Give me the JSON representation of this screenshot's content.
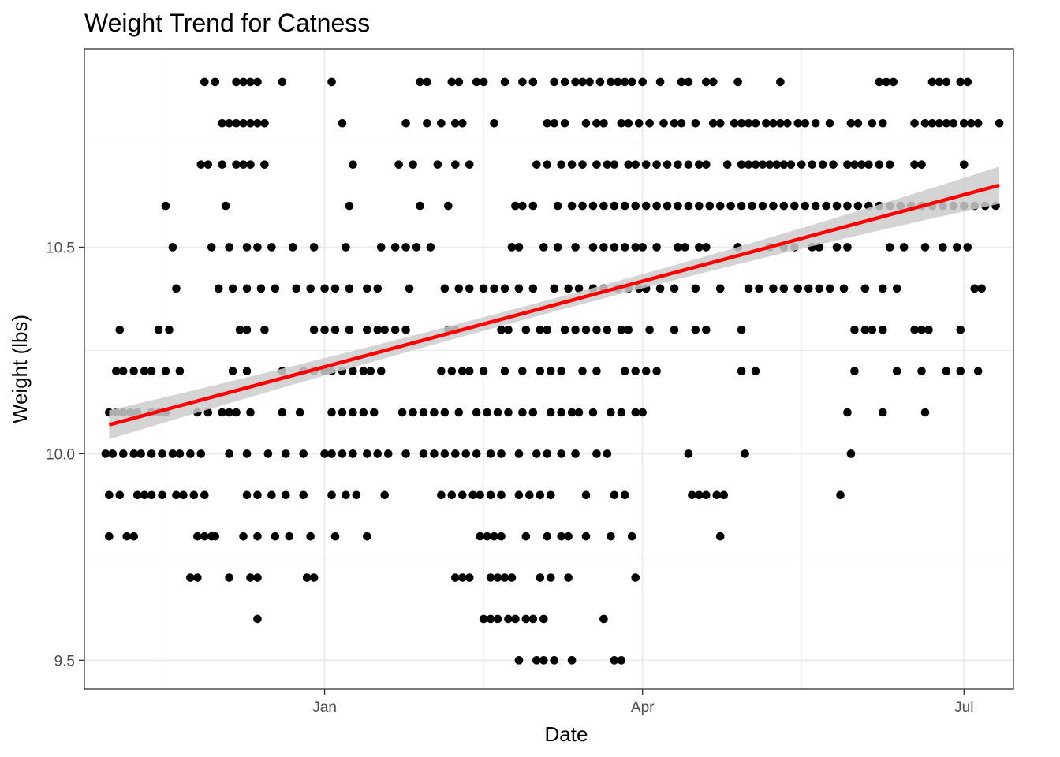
{
  "chart_data": {
    "type": "scatter",
    "title": "Weight Trend for Catness",
    "xlabel": "Date",
    "ylabel": "Weight (lbs)",
    "x_type": "date",
    "xlim": [
      "2021-10-25",
      "2022-07-15"
    ],
    "ylim": [
      9.43,
      10.98
    ],
    "x_ticks": [
      {
        "value": "2022-01-01",
        "label": "Jan"
      },
      {
        "value": "2022-04-01",
        "label": "Apr"
      },
      {
        "value": "2022-07-01",
        "label": "Jul"
      }
    ],
    "x_minor_ticks": [
      "2021-11-16",
      "2022-02-15",
      "2022-05-16"
    ],
    "y_ticks": [
      {
        "value": 9.5,
        "label": "9.5"
      },
      {
        "value": 10.0,
        "label": "10.0"
      },
      {
        "value": 10.5,
        "label": "10.5"
      }
    ],
    "y_minor_ticks": [
      9.75,
      10.25,
      10.75
    ],
    "grid": true,
    "point_color": "#000000",
    "trend": {
      "method": "linear",
      "color": "#ff0000",
      "band_color": "#cccccc",
      "x": [
        "2021-11-01",
        "2022-07-11"
      ],
      "y": [
        10.07,
        10.65
      ],
      "band_halfwidth": [
        0.035,
        0.045
      ]
    },
    "points_by_weight": [
      {
        "y": 10.9,
        "x": [
          "2021-11-28",
          "2021-12-01",
          "2021-12-07",
          "2021-12-09",
          "2021-12-11",
          "2021-12-13",
          "2021-12-20",
          "2022-01-03",
          "2022-01-28",
          "2022-01-30",
          "2022-02-06",
          "2022-02-08",
          "2022-02-13",
          "2022-02-15",
          "2022-02-21",
          "2022-02-26",
          "2022-03-01",
          "2022-03-07",
          "2022-03-10",
          "2022-03-13",
          "2022-03-15",
          "2022-03-17",
          "2022-03-20",
          "2022-03-23",
          "2022-03-25",
          "2022-03-27",
          "2022-03-29",
          "2022-04-01",
          "2022-04-06",
          "2022-04-12",
          "2022-04-14",
          "2022-04-19",
          "2022-04-21",
          "2022-04-28",
          "2022-05-10",
          "2022-06-07",
          "2022-06-09",
          "2022-06-11",
          "2022-06-22",
          "2022-06-24",
          "2022-06-26",
          "2022-06-30",
          "2022-07-02"
        ]
      },
      {
        "y": 10.8,
        "x": [
          "2021-12-03",
          "2021-12-05",
          "2021-12-07",
          "2021-12-09",
          "2021-12-11",
          "2021-12-13",
          "2021-12-15",
          "2022-01-06",
          "2022-01-24",
          "2022-01-30",
          "2022-02-03",
          "2022-02-07",
          "2022-02-09",
          "2022-02-18",
          "2022-03-05",
          "2022-03-07",
          "2022-03-10",
          "2022-03-16",
          "2022-03-19",
          "2022-03-21",
          "2022-03-26",
          "2022-03-28",
          "2022-03-31",
          "2022-04-03",
          "2022-04-07",
          "2022-04-10",
          "2022-04-12",
          "2022-04-16",
          "2022-04-21",
          "2022-04-23",
          "2022-04-27",
          "2022-04-29",
          "2022-05-01",
          "2022-05-03",
          "2022-05-06",
          "2022-05-08",
          "2022-05-10",
          "2022-05-12",
          "2022-05-15",
          "2022-05-17",
          "2022-05-20",
          "2022-05-24",
          "2022-05-30",
          "2022-06-01",
          "2022-06-05",
          "2022-06-08",
          "2022-06-17",
          "2022-06-20",
          "2022-06-22",
          "2022-06-24",
          "2022-06-26",
          "2022-06-28",
          "2022-07-01",
          "2022-07-03",
          "2022-07-05",
          "2022-07-11"
        ]
      },
      {
        "y": 10.7,
        "x": [
          "2021-11-27",
          "2021-11-29",
          "2021-12-03",
          "2021-12-07",
          "2021-12-09",
          "2021-12-11",
          "2021-12-15",
          "2022-01-09",
          "2022-01-22",
          "2022-01-26",
          "2022-02-02",
          "2022-02-07",
          "2022-02-11",
          "2022-03-02",
          "2022-03-05",
          "2022-03-09",
          "2022-03-12",
          "2022-03-15",
          "2022-03-19",
          "2022-03-22",
          "2022-03-24",
          "2022-03-28",
          "2022-03-30",
          "2022-04-02",
          "2022-04-05",
          "2022-04-08",
          "2022-04-11",
          "2022-04-14",
          "2022-04-17",
          "2022-04-19",
          "2022-04-25",
          "2022-04-29",
          "2022-05-01",
          "2022-05-03",
          "2022-05-05",
          "2022-05-07",
          "2022-05-09",
          "2022-05-11",
          "2022-05-13",
          "2022-05-16",
          "2022-05-19",
          "2022-05-22",
          "2022-05-25",
          "2022-05-29",
          "2022-05-31",
          "2022-06-02",
          "2022-06-04",
          "2022-06-07",
          "2022-06-10",
          "2022-06-17",
          "2022-06-19",
          "2022-07-01"
        ]
      },
      {
        "y": 10.6,
        "x": [
          "2021-11-17",
          "2021-12-04",
          "2022-01-08",
          "2022-01-28",
          "2022-02-05",
          "2022-02-24",
          "2022-02-26",
          "2022-03-01",
          "2022-03-08",
          "2022-03-12",
          "2022-03-15",
          "2022-03-18",
          "2022-03-21",
          "2022-03-24",
          "2022-03-27",
          "2022-03-30",
          "2022-04-02",
          "2022-04-05",
          "2022-04-08",
          "2022-04-11",
          "2022-04-14",
          "2022-04-17",
          "2022-04-20",
          "2022-04-23",
          "2022-04-26",
          "2022-04-29",
          "2022-05-02",
          "2022-05-05",
          "2022-05-08",
          "2022-05-11",
          "2022-05-14",
          "2022-05-17",
          "2022-05-20",
          "2022-05-23",
          "2022-05-26",
          "2022-05-29",
          "2022-06-01",
          "2022-06-04",
          "2022-06-07",
          "2022-06-10",
          "2022-06-13",
          "2022-06-16",
          "2022-06-19",
          "2022-06-22",
          "2022-06-25",
          "2022-06-28",
          "2022-07-01",
          "2022-07-04",
          "2022-07-07",
          "2022-07-10"
        ]
      },
      {
        "y": 10.5,
        "x": [
          "2021-11-19",
          "2021-11-30",
          "2021-12-05",
          "2021-12-10",
          "2021-12-13",
          "2021-12-17",
          "2021-12-23",
          "2021-12-29",
          "2022-01-07",
          "2022-01-17",
          "2022-01-21",
          "2022-01-24",
          "2022-01-27",
          "2022-01-31",
          "2022-02-23",
          "2022-02-25",
          "2022-03-04",
          "2022-03-08",
          "2022-03-13",
          "2022-03-18",
          "2022-03-21",
          "2022-03-24",
          "2022-03-27",
          "2022-03-30",
          "2022-04-01",
          "2022-04-05",
          "2022-04-11",
          "2022-04-13",
          "2022-04-17",
          "2022-04-19",
          "2022-04-28",
          "2022-05-07",
          "2022-05-11",
          "2022-05-14",
          "2022-05-19",
          "2022-05-21",
          "2022-05-26",
          "2022-05-29",
          "2022-06-10",
          "2022-06-14",
          "2022-06-20",
          "2022-06-25",
          "2022-06-29",
          "2022-07-02"
        ]
      },
      {
        "y": 10.4,
        "x": [
          "2021-11-20",
          "2021-12-02",
          "2021-12-06",
          "2021-12-10",
          "2021-12-14",
          "2021-12-18",
          "2021-12-24",
          "2021-12-28",
          "2022-01-01",
          "2022-01-04",
          "2022-01-08",
          "2022-01-13",
          "2022-01-16",
          "2022-01-25",
          "2022-02-04",
          "2022-02-08",
          "2022-02-11",
          "2022-02-15",
          "2022-02-18",
          "2022-02-21",
          "2022-02-25",
          "2022-03-01",
          "2022-03-07",
          "2022-03-11",
          "2022-03-14",
          "2022-03-18",
          "2022-03-21",
          "2022-03-25",
          "2022-03-28",
          "2022-03-31",
          "2022-04-02",
          "2022-04-06",
          "2022-04-10",
          "2022-04-16",
          "2022-04-23",
          "2022-05-01",
          "2022-05-04",
          "2022-05-08",
          "2022-05-11",
          "2022-05-15",
          "2022-05-18",
          "2022-05-21",
          "2022-05-24",
          "2022-05-28",
          "2022-06-03",
          "2022-06-08",
          "2022-06-12",
          "2022-07-04",
          "2022-07-06"
        ]
      },
      {
        "y": 10.3,
        "x": [
          "2021-11-04",
          "2021-11-15",
          "2021-11-18",
          "2021-12-08",
          "2021-12-10",
          "2021-12-15",
          "2021-12-29",
          "2022-01-01",
          "2022-01-04",
          "2022-01-08",
          "2022-01-13",
          "2022-01-16",
          "2022-01-18",
          "2022-01-21",
          "2022-01-24",
          "2022-02-05",
          "2022-02-07",
          "2022-02-20",
          "2022-02-22",
          "2022-02-27",
          "2022-03-03",
          "2022-03-05",
          "2022-03-10",
          "2022-03-13",
          "2022-03-16",
          "2022-03-19",
          "2022-03-22",
          "2022-03-26",
          "2022-03-28",
          "2022-04-03",
          "2022-04-10",
          "2022-04-16",
          "2022-04-19",
          "2022-04-29",
          "2022-05-31",
          "2022-06-03",
          "2022-06-05",
          "2022-06-08",
          "2022-06-17",
          "2022-06-19",
          "2022-06-21",
          "2022-06-30"
        ]
      },
      {
        "y": 10.2,
        "x": [
          "2021-11-03",
          "2021-11-05",
          "2021-11-08",
          "2021-11-11",
          "2021-11-13",
          "2021-11-17",
          "2021-11-21",
          "2021-12-06",
          "2021-12-10",
          "2021-12-20",
          "2021-12-26",
          "2021-12-29",
          "2022-01-01",
          "2022-01-03",
          "2022-01-06",
          "2022-01-09",
          "2022-01-12",
          "2022-01-14",
          "2022-01-17",
          "2022-02-03",
          "2022-02-06",
          "2022-02-09",
          "2022-02-11",
          "2022-02-15",
          "2022-02-21",
          "2022-02-26",
          "2022-03-03",
          "2022-03-06",
          "2022-03-09",
          "2022-03-15",
          "2022-03-19",
          "2022-03-27",
          "2022-03-30",
          "2022-04-02",
          "2022-04-05",
          "2022-04-29",
          "2022-05-03",
          "2022-05-31",
          "2022-06-12",
          "2022-06-19",
          "2022-06-26",
          "2022-06-30",
          "2022-07-05"
        ]
      },
      {
        "y": 10.1,
        "x": [
          "2021-11-01",
          "2021-11-03",
          "2021-11-05",
          "2021-11-07",
          "2021-11-09",
          "2021-11-13",
          "2021-11-15",
          "2021-11-17",
          "2021-11-26",
          "2021-11-29",
          "2021-12-03",
          "2021-12-05",
          "2021-12-07",
          "2021-12-11",
          "2021-12-20",
          "2021-12-25",
          "2022-01-03",
          "2022-01-06",
          "2022-01-09",
          "2022-01-12",
          "2022-01-15",
          "2022-01-23",
          "2022-01-26",
          "2022-01-29",
          "2022-02-01",
          "2022-02-04",
          "2022-02-08",
          "2022-02-13",
          "2022-02-16",
          "2022-02-19",
          "2022-02-22",
          "2022-02-26",
          "2022-03-01",
          "2022-03-06",
          "2022-03-09",
          "2022-03-12",
          "2022-03-14",
          "2022-03-18",
          "2022-03-23",
          "2022-03-26",
          "2022-03-30",
          "2022-04-01",
          "2022-05-29",
          "2022-06-08",
          "2022-06-20"
        ]
      },
      {
        "y": 10.0,
        "x": [
          "2021-10-31",
          "2021-11-02",
          "2021-11-05",
          "2021-11-08",
          "2021-11-10",
          "2021-11-13",
          "2021-11-16",
          "2021-11-19",
          "2021-11-21",
          "2021-11-24",
          "2021-11-27",
          "2021-12-05",
          "2021-12-10",
          "2021-12-16",
          "2021-12-21",
          "2021-12-26",
          "2022-01-01",
          "2022-01-03",
          "2022-01-06",
          "2022-01-09",
          "2022-01-13",
          "2022-01-16",
          "2022-01-19",
          "2022-01-24",
          "2022-01-29",
          "2022-02-01",
          "2022-02-04",
          "2022-02-07",
          "2022-02-10",
          "2022-02-13",
          "2022-02-17",
          "2022-02-20",
          "2022-02-25",
          "2022-03-02",
          "2022-03-05",
          "2022-03-09",
          "2022-03-13",
          "2022-03-19",
          "2022-03-22",
          "2022-04-14",
          "2022-04-30",
          "2022-05-30"
        ]
      },
      {
        "y": 9.9,
        "x": [
          "2021-11-01",
          "2021-11-04",
          "2021-11-09",
          "2021-11-11",
          "2021-11-13",
          "2021-11-16",
          "2021-11-20",
          "2021-11-22",
          "2021-11-25",
          "2021-11-28",
          "2021-12-10",
          "2021-12-13",
          "2021-12-17",
          "2021-12-21",
          "2021-12-26",
          "2022-01-03",
          "2022-01-07",
          "2022-01-10",
          "2022-01-18",
          "2022-02-03",
          "2022-02-06",
          "2022-02-09",
          "2022-02-12",
          "2022-02-14",
          "2022-02-17",
          "2022-02-20",
          "2022-02-25",
          "2022-02-28",
          "2022-03-03",
          "2022-03-06",
          "2022-03-16",
          "2022-03-24",
          "2022-03-27",
          "2022-04-15",
          "2022-04-17",
          "2022-04-19",
          "2022-04-22",
          "2022-04-24",
          "2022-05-27"
        ]
      },
      {
        "y": 9.8,
        "x": [
          "2021-11-01",
          "2021-11-06",
          "2021-11-08",
          "2021-11-26",
          "2021-11-28",
          "2021-11-30",
          "2021-12-01",
          "2021-12-09",
          "2021-12-13",
          "2021-12-18",
          "2021-12-22",
          "2021-12-28",
          "2022-01-04",
          "2022-01-13",
          "2022-02-14",
          "2022-02-16",
          "2022-02-18",
          "2022-02-20",
          "2022-02-27",
          "2022-03-05",
          "2022-03-09",
          "2022-03-11",
          "2022-03-16",
          "2022-03-23",
          "2022-03-29",
          "2022-04-23"
        ]
      },
      {
        "y": 9.7,
        "x": [
          "2021-11-24",
          "2021-11-26",
          "2021-12-05",
          "2021-12-11",
          "2021-12-13",
          "2021-12-27",
          "2021-12-29",
          "2022-02-07",
          "2022-02-09",
          "2022-02-11",
          "2022-02-17",
          "2022-02-19",
          "2022-02-21",
          "2022-02-23",
          "2022-03-03",
          "2022-03-06",
          "2022-03-11",
          "2022-03-30"
        ]
      },
      {
        "y": 9.6,
        "x": [
          "2021-12-13",
          "2022-02-15",
          "2022-02-17",
          "2022-02-19",
          "2022-02-22",
          "2022-02-24",
          "2022-02-27",
          "2022-03-01",
          "2022-03-04",
          "2022-03-21"
        ]
      },
      {
        "y": 9.5,
        "x": [
          "2022-02-25",
          "2022-03-02",
          "2022-03-04",
          "2022-03-07",
          "2022-03-12",
          "2022-03-24",
          "2022-03-26"
        ]
      }
    ]
  }
}
